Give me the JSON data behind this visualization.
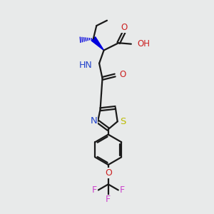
{
  "background_color": "#e8eaea",
  "bond_color": "#1a1a1a",
  "bond_lw": 1.6,
  "label_fontsize": 8.5,
  "colors": {
    "N": "#2244cc",
    "O": "#cc2222",
    "S": "#bbbb00",
    "F": "#cc44cc",
    "C": "#1a1a1a",
    "H": "#1a1a1a"
  },
  "wedge_filled_color": "#0000dd",
  "wedge_dashed_color": "#0000dd"
}
